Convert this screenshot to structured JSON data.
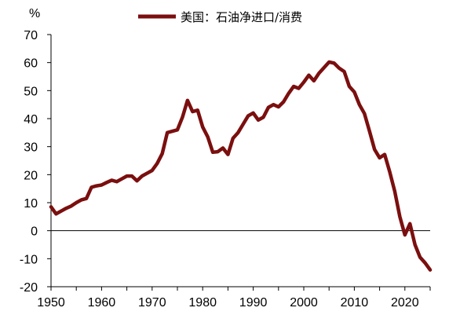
{
  "chart_data": {
    "type": "line",
    "title": "",
    "xlabel": "",
    "ylabel": "%",
    "xlim": [
      1950,
      2025
    ],
    "ylim": [
      -20,
      70
    ],
    "x_ticks": [
      "1950",
      "1960",
      "1970",
      "1980",
      "1990",
      "2000",
      "2010",
      "2020"
    ],
    "y_ticks": [
      "70",
      "60",
      "50",
      "40",
      "30",
      "20",
      "10",
      "0",
      "-10",
      "-20"
    ],
    "grid": false,
    "legend_position": "top-center",
    "series": [
      {
        "name": "美国：石油净进口/消费",
        "color": "#7b0f0f",
        "x": [
          1950,
          1951,
          1952,
          1953,
          1954,
          1955,
          1956,
          1957,
          1958,
          1959,
          1960,
          1961,
          1962,
          1963,
          1964,
          1965,
          1966,
          1967,
          1968,
          1969,
          1970,
          1971,
          1972,
          1973,
          1974,
          1975,
          1976,
          1977,
          1978,
          1979,
          1980,
          1981,
          1982,
          1983,
          1984,
          1985,
          1986,
          1987,
          1988,
          1989,
          1990,
          1991,
          1992,
          1993,
          1994,
          1995,
          1996,
          1997,
          1998,
          1999,
          2000,
          2001,
          2002,
          2003,
          2004,
          2005,
          2006,
          2007,
          2008,
          2009,
          2010,
          2011,
          2012,
          2013,
          2014,
          2015,
          2016,
          2017,
          2018,
          2019,
          2020,
          2021,
          2022,
          2023,
          2024,
          2025
        ],
        "y": [
          8.5,
          6,
          7,
          8,
          8.8,
          10,
          11,
          11.5,
          15.5,
          16,
          16.3,
          17.2,
          18,
          17.5,
          18.5,
          19.5,
          19.5,
          17.8,
          19.5,
          20.5,
          21.5,
          24,
          27.5,
          35,
          35.5,
          36,
          40.5,
          46.5,
          42.5,
          43,
          37,
          33.5,
          28,
          28.2,
          29.5,
          27.2,
          33,
          35,
          38,
          41,
          42,
          39.5,
          40.5,
          44,
          45,
          44.2,
          46,
          49,
          51.5,
          50.8,
          53,
          55.5,
          53.5,
          56.2,
          58.2,
          60.2,
          59.8,
          58,
          56.8,
          51.5,
          49.5,
          45,
          41.8,
          35.5,
          29,
          26,
          27.2,
          21,
          14,
          5,
          -1.5,
          2.5,
          -5,
          -9.5,
          -11.5,
          -14
        ]
      }
    ]
  }
}
